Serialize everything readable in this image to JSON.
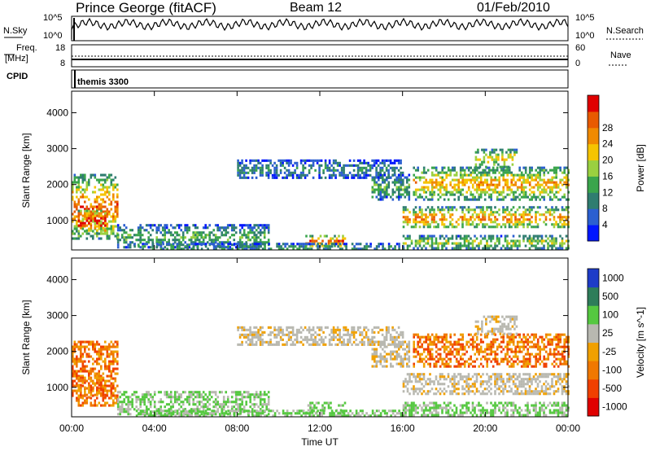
{
  "header": {
    "station": "Prince George (fitACF)",
    "beam": "Beam 12",
    "date": "01/Feb/2010"
  },
  "strip_labels": {
    "nsky": "N.Sky",
    "nsearch": "N.Search",
    "freq_line1": "Freq.",
    "freq_line2": "[MHz]",
    "nave": "Nave",
    "cpid": "CPID",
    "cpid_value": "themis 3300"
  },
  "strip_ticks": {
    "noise_top_left": "10^5",
    "noise_bottom_left": "10^0",
    "noise_top_right": "10^5",
    "noise_bottom_right": "10^0",
    "freq_top": "18",
    "freq_bottom": "8",
    "nave_top": "60",
    "nave_bottom": "0"
  },
  "chart_data": [
    {
      "type": "heatmap",
      "name": "power",
      "ylabel": "Slant Range [km]",
      "xlabel": "",
      "x_ticks": [
        "00:00",
        "04:00",
        "08:00",
        "12:00",
        "16:00",
        "20:00",
        "00:00"
      ],
      "y_ticks": [
        "1000",
        "2000",
        "3000",
        "4000"
      ],
      "ylim": [
        180,
        4600
      ],
      "colorbar": {
        "label": "Power [dB]",
        "ticks": [
          "4",
          "8",
          "12",
          "16",
          "20",
          "24",
          "28"
        ],
        "colors": [
          "#0016ff",
          "#2b5fd0",
          "#2f7d70",
          "#3aa54c",
          "#9ad040",
          "#f5c400",
          "#f08a00",
          "#e85a00",
          "#e00000"
        ]
      }
    },
    {
      "type": "heatmap",
      "name": "velocity",
      "ylabel": "Slant Range [km]",
      "xlabel": "Time UT",
      "x_ticks": [
        "00:00",
        "04:00",
        "08:00",
        "12:00",
        "16:00",
        "20:00",
        "00:00"
      ],
      "y_ticks": [
        "1000",
        "2000",
        "3000",
        "4000"
      ],
      "ylim": [
        180,
        4600
      ],
      "colorbar": {
        "label": "Velocity [m s^-1]",
        "ticks": [
          "1000",
          "500",
          "100",
          "25",
          "-25",
          "-100",
          "-500",
          "-1000"
        ],
        "colors": [
          "#1e3cc8",
          "#2e7d5a",
          "#55c840",
          "#b8b8b0",
          "#f0a000",
          "#f07800",
          "#f04000",
          "#e00000"
        ]
      }
    }
  ]
}
